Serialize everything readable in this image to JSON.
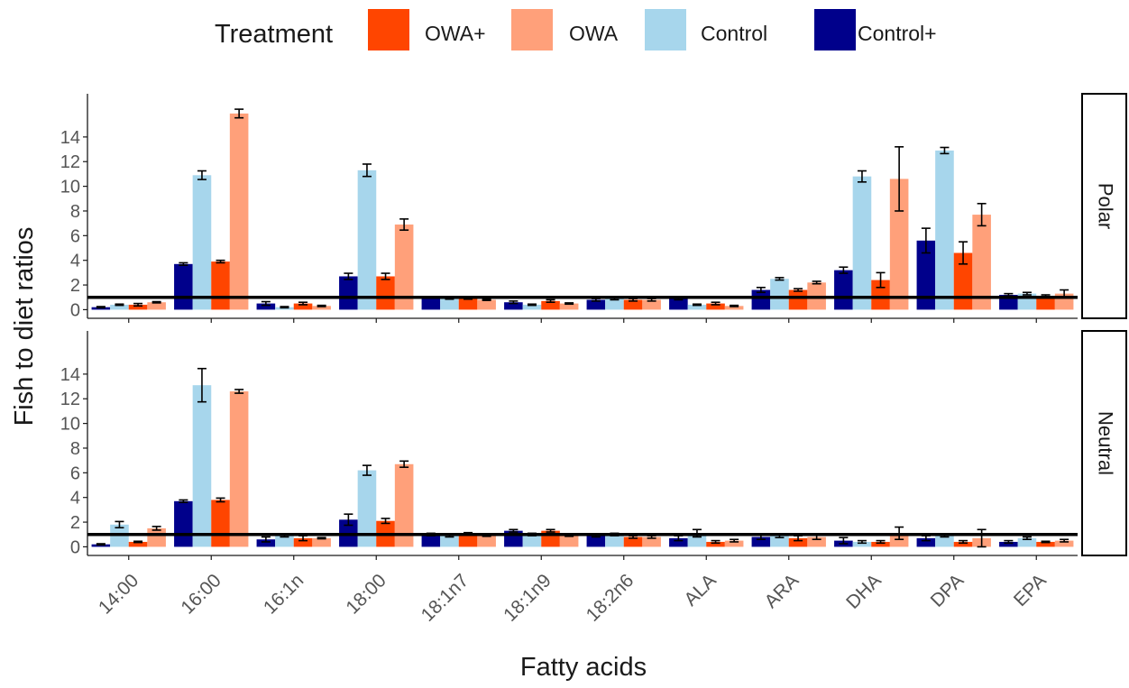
{
  "chart_data": {
    "type": "bar",
    "legend": {
      "title": "Treatment",
      "position": "top",
      "items": [
        {
          "label": "OWA+",
          "color": "#FF4500"
        },
        {
          "label": "OWA",
          "color": "#FFA07A"
        },
        {
          "label": "Control",
          "color": "#A7D6EC"
        },
        {
          "label": "Control+",
          "color": "#00008B"
        }
      ]
    },
    "xlabel": "Fatty acids",
    "ylabel": "Fish to diet ratios",
    "categories": [
      "14:00",
      "16:00",
      "16:1n",
      "18:00",
      "18:1n7",
      "18:1n9",
      "18:2n6",
      "ALA",
      "ARA",
      "DHA",
      "DPA",
      "EPA"
    ],
    "series_order": [
      "Control+",
      "Control",
      "OWA+",
      "OWA"
    ],
    "series_colors": {
      "Control+": "#00008B",
      "Control": "#A7D6EC",
      "OWA+": "#FF4500",
      "OWA": "#FFA07A"
    },
    "yticks": [
      0,
      2,
      4,
      6,
      8,
      10,
      12,
      14
    ],
    "ylim": [
      -0.7,
      17.5
    ],
    "reference_line": 1,
    "panels": [
      {
        "label": "Polar",
        "series": [
          {
            "name": "Control+",
            "values": [
              0.2,
              3.7,
              0.5,
              2.7,
              1.0,
              0.6,
              0.8,
              0.9,
              1.6,
              3.2,
              5.6,
              1.2
            ],
            "errors": [
              0.05,
              0.1,
              0.15,
              0.25,
              0.05,
              0.1,
              0.1,
              0.1,
              0.2,
              0.25,
              1.0,
              0.1
            ]
          },
          {
            "name": "Control",
            "values": [
              0.4,
              10.9,
              0.2,
              11.3,
              0.9,
              0.4,
              0.9,
              0.4,
              2.5,
              10.8,
              12.9,
              1.3
            ],
            "errors": [
              0.05,
              0.35,
              0.05,
              0.5,
              0.05,
              0.05,
              0.1,
              0.05,
              0.1,
              0.45,
              0.25,
              0.1
            ]
          },
          {
            "name": "OWA+",
            "values": [
              0.4,
              3.9,
              0.5,
              2.7,
              0.9,
              0.7,
              0.8,
              0.5,
              1.6,
              2.4,
              4.6,
              1.1
            ],
            "errors": [
              0.1,
              0.1,
              0.1,
              0.25,
              0.05,
              0.1,
              0.1,
              0.1,
              0.1,
              0.6,
              0.9,
              0.1
            ]
          },
          {
            "name": "OWA",
            "values": [
              0.6,
              15.9,
              0.3,
              6.9,
              0.8,
              0.5,
              0.8,
              0.3,
              2.2,
              10.6,
              7.7,
              1.3
            ],
            "errors": [
              0.05,
              0.35,
              0.05,
              0.45,
              0.05,
              0.05,
              0.1,
              0.05,
              0.1,
              2.6,
              0.9,
              0.3
            ]
          }
        ]
      },
      {
        "label": "Neutral",
        "series": [
          {
            "name": "Control+",
            "values": [
              0.2,
              3.7,
              0.6,
              2.2,
              1.0,
              1.3,
              0.9,
              0.7,
              0.8,
              0.5,
              0.7,
              0.4
            ],
            "errors": [
              0.05,
              0.1,
              0.2,
              0.45,
              0.1,
              0.1,
              0.1,
              0.2,
              0.2,
              0.25,
              0.2,
              0.1
            ]
          },
          {
            "name": "Control",
            "values": [
              1.8,
              13.1,
              0.9,
              6.2,
              0.9,
              1.0,
              1.0,
              1.1,
              0.9,
              0.4,
              0.9,
              0.7
            ],
            "errors": [
              0.25,
              1.35,
              0.1,
              0.4,
              0.1,
              0.1,
              0.1,
              0.3,
              0.15,
              0.1,
              0.1,
              0.1
            ]
          },
          {
            "name": "OWA+",
            "values": [
              0.4,
              3.8,
              0.7,
              2.1,
              1.1,
              1.3,
              0.8,
              0.4,
              0.7,
              0.4,
              0.4,
              0.4
            ],
            "errors": [
              0.05,
              0.15,
              0.2,
              0.2,
              0.05,
              0.1,
              0.1,
              0.1,
              0.2,
              0.1,
              0.1,
              0.05
            ]
          },
          {
            "name": "OWA",
            "values": [
              1.5,
              12.6,
              0.7,
              6.7,
              0.9,
              0.9,
              0.8,
              0.5,
              0.8,
              1.1,
              0.7,
              0.5
            ],
            "errors": [
              0.15,
              0.15,
              0.05,
              0.25,
              0.05,
              0.05,
              0.1,
              0.1,
              0.2,
              0.5,
              0.7,
              0.1
            ]
          }
        ]
      }
    ]
  }
}
